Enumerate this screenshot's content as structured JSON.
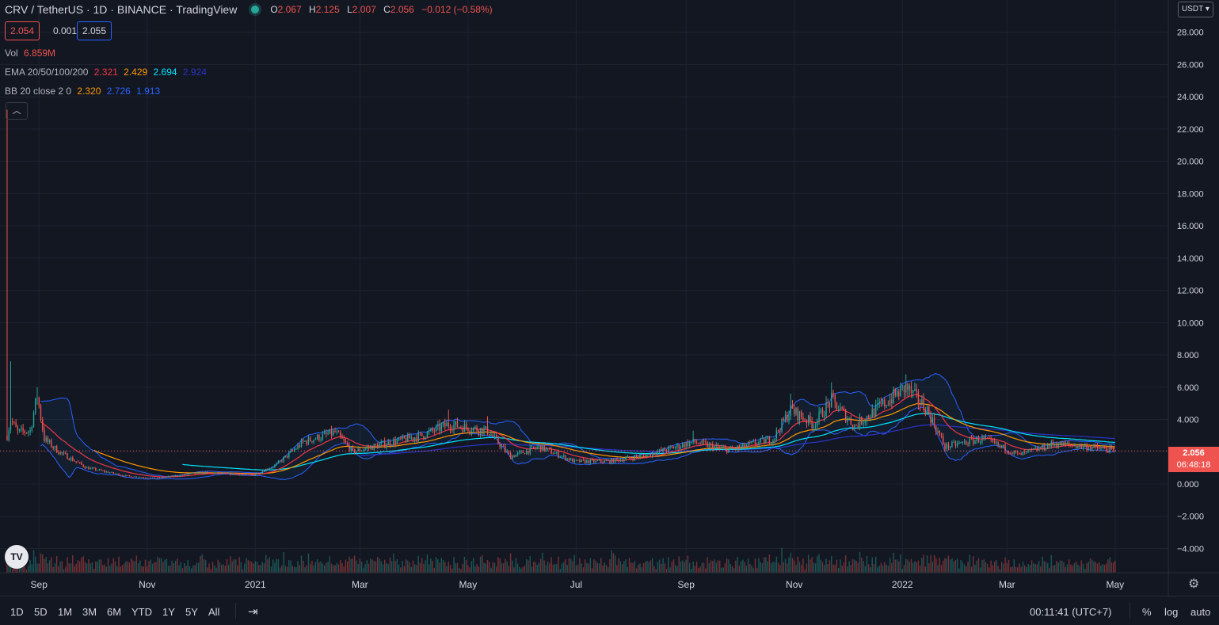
{
  "header": {
    "title": "CRV / TetherUS · 1D · BINANCE · TradingView",
    "ohlc": [
      {
        "k": "O",
        "v": "2.067"
      },
      {
        "k": "H",
        "v": "2.125"
      },
      {
        "k": "L",
        "v": "2.007"
      },
      {
        "k": "C",
        "v": "2.056"
      },
      {
        "k": "",
        "v": "−0.012 (−0.58%)"
      }
    ]
  },
  "quote": {
    "bid": "2.054",
    "spread": "0.001",
    "ask": "2.055"
  },
  "legends": {
    "vol": {
      "label": "Vol",
      "value": "6.859M"
    },
    "ema": {
      "label": "EMA 20/50/100/200",
      "v1": "2.321",
      "v2": "2.429",
      "v3": "2.694",
      "v4": "2.924"
    },
    "bb": {
      "label": "BB 20 close 2 0",
      "v1": "2.320",
      "v2": "2.726",
      "v3": "1.913"
    }
  },
  "currency_label": "USDT",
  "last_price": {
    "value": "2.056",
    "countdown": "06:48:18"
  },
  "bottom": {
    "ranges": [
      "1D",
      "5D",
      "1M",
      "3M",
      "6M",
      "YTD",
      "1Y",
      "5Y",
      "All"
    ],
    "time": "00:11:41 (UTC+7)",
    "pct": "%",
    "log": "log",
    "auto": "auto"
  },
  "icons": {
    "collapse": "chevron-up-icon",
    "gear": "gear-icon",
    "calendar": "calendar-range-icon",
    "logo": "tradingview-logo-icon"
  },
  "colors": {
    "background": "#131722",
    "grid": "#1f2330",
    "up": "#26a69a",
    "down": "#ef5350",
    "ema20": "#f23645",
    "ema50": "#ff9800",
    "ema100": "#00e5ff",
    "ema200": "#2a35c9",
    "bb": "#2962ff",
    "bb_fill": "rgba(33,150,243,0.06)"
  },
  "chart_data": {
    "type": "candlestick",
    "symbol": "CRV / TetherUS",
    "interval": "1D",
    "y_ticks": [
      -4,
      -2,
      0,
      2,
      4,
      6,
      8,
      10,
      12,
      14,
      16,
      18,
      20,
      22,
      24,
      26,
      28
    ],
    "y_tick_labels": [
      "−4.000",
      "−2.000",
      "0.000",
      "2.000",
      "4.000",
      "6.000",
      "8.000",
      "10.000",
      "12.000",
      "14.000",
      "16.000",
      "18.000",
      "20.000",
      "22.000",
      "24.000",
      "26.000",
      "28.000"
    ],
    "ylim": [
      -5.5,
      30
    ],
    "x_ticks": [
      "2020-09-01",
      "2020-11-01",
      "2021-01-01",
      "2021-03-01",
      "2021-05-01",
      "2021-07-01",
      "2021-09-01",
      "2021-11-01",
      "2022-01-01",
      "2022-03-01",
      "2022-05-01"
    ],
    "x_tick_labels": [
      "Sep",
      "Nov",
      "2021",
      "Mar",
      "May",
      "Jul",
      "Sep",
      "Nov",
      "2022",
      "Mar",
      "May"
    ],
    "xlim": [
      "2020-08-10",
      "2022-05-31"
    ],
    "price_anchors": [
      {
        "date": "2020-08-14",
        "close": 3.0,
        "high": 23.2
      },
      {
        "date": "2020-08-16",
        "close": 4.0,
        "high": 7.6
      },
      {
        "date": "2020-08-20",
        "close": 3.2
      },
      {
        "date": "2020-08-27",
        "close": 3.3
      },
      {
        "date": "2020-08-31",
        "close": 5.5,
        "high": 6.0
      },
      {
        "date": "2020-09-04",
        "close": 2.8
      },
      {
        "date": "2020-09-12",
        "close": 2.0
      },
      {
        "date": "2020-09-28",
        "close": 1.0
      },
      {
        "date": "2020-10-20",
        "close": 0.5
      },
      {
        "date": "2020-11-06",
        "close": 0.35
      },
      {
        "date": "2020-12-01",
        "close": 0.7
      },
      {
        "date": "2020-12-31",
        "close": 0.55
      },
      {
        "date": "2021-01-13",
        "close": 1.2
      },
      {
        "date": "2021-01-28",
        "close": 2.6
      },
      {
        "date": "2021-02-15",
        "close": 3.2
      },
      {
        "date": "2021-02-25",
        "close": 2.0
      },
      {
        "date": "2021-03-15",
        "close": 2.5
      },
      {
        "date": "2021-04-05",
        "close": 3.0
      },
      {
        "date": "2021-04-20",
        "close": 3.7,
        "high": 4.6
      },
      {
        "date": "2021-05-12",
        "close": 3.3,
        "high": 4.2
      },
      {
        "date": "2021-05-25",
        "close": 1.7
      },
      {
        "date": "2021-06-10",
        "close": 2.3
      },
      {
        "date": "2021-06-30",
        "close": 1.4
      },
      {
        "date": "2021-07-20",
        "close": 1.4
      },
      {
        "date": "2021-08-10",
        "close": 1.8
      },
      {
        "date": "2021-09-05",
        "close": 2.6,
        "high": 3.3
      },
      {
        "date": "2021-09-25",
        "close": 2.1
      },
      {
        "date": "2021-10-20",
        "close": 2.8
      },
      {
        "date": "2021-10-30",
        "close": 4.6,
        "high": 5.6
      },
      {
        "date": "2021-11-12",
        "close": 3.7
      },
      {
        "date": "2021-11-22",
        "close": 5.2,
        "high": 6.3
      },
      {
        "date": "2021-12-05",
        "close": 3.6
      },
      {
        "date": "2021-12-22",
        "close": 5.0
      },
      {
        "date": "2022-01-03",
        "close": 6.0,
        "high": 6.8
      },
      {
        "date": "2022-01-15",
        "close": 4.6
      },
      {
        "date": "2022-01-25",
        "close": 2.3
      },
      {
        "date": "2022-02-15",
        "close": 2.8
      },
      {
        "date": "2022-03-08",
        "close": 1.8
      },
      {
        "date": "2022-03-28",
        "close": 2.5
      },
      {
        "date": "2022-04-15",
        "close": 2.3
      },
      {
        "date": "2022-05-01",
        "close": 2.056
      }
    ],
    "series": [
      {
        "name": "EMA 20",
        "last": 2.321
      },
      {
        "name": "EMA 50",
        "last": 2.429
      },
      {
        "name": "EMA 100",
        "last": 2.694
      },
      {
        "name": "EMA 200",
        "last": 2.924
      },
      {
        "name": "BB basis",
        "last": 2.32
      },
      {
        "name": "BB upper",
        "last": 2.726
      },
      {
        "name": "BB lower",
        "last": 1.913
      }
    ],
    "volume_last": "6.859M",
    "last": {
      "open": 2.067,
      "high": 2.125,
      "low": 2.007,
      "close": 2.056,
      "change": -0.012,
      "change_pct": -0.58
    }
  }
}
